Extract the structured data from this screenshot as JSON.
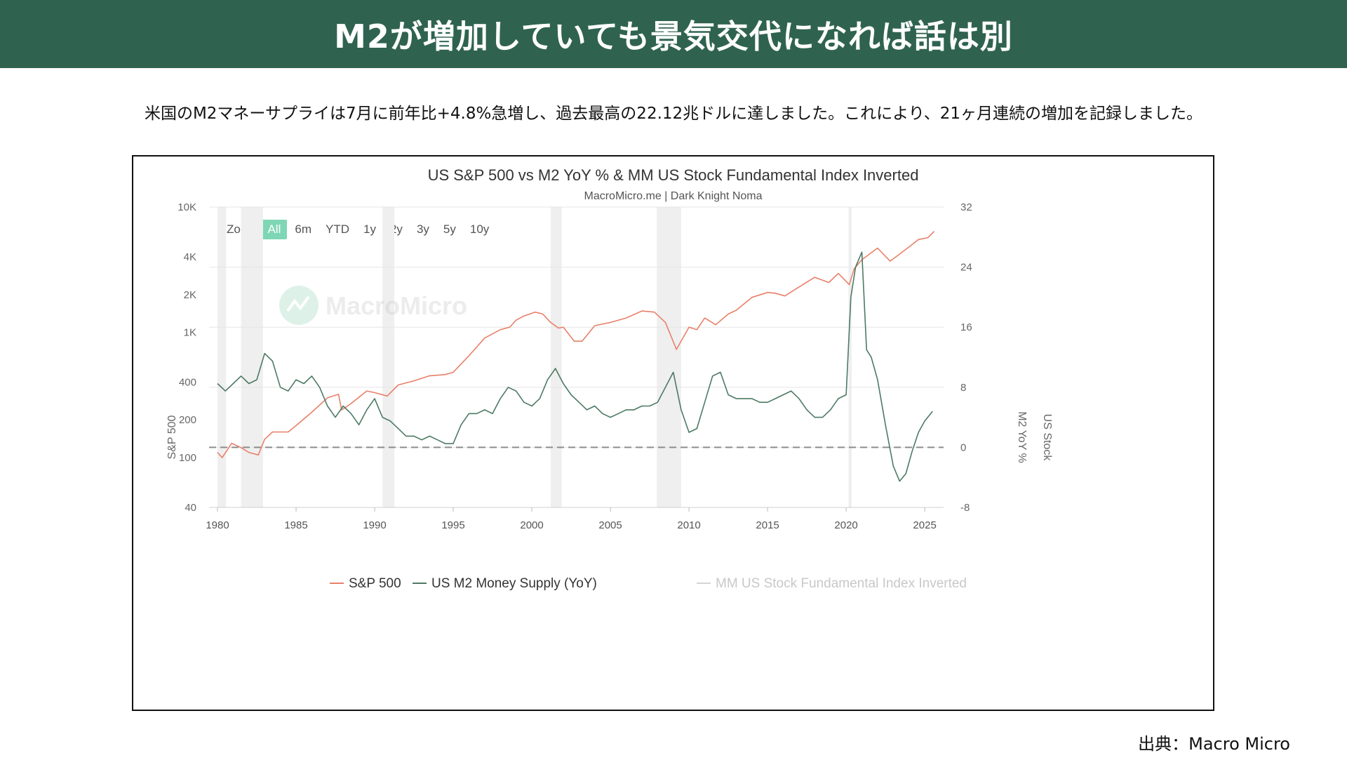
{
  "header": {
    "title": "M2が増加していても景気交代になれば話は別"
  },
  "lead": "米国のM2マネーサプライは7月に前年比+4.8%急増し、過去最高の22.12兆ドルに達しました。これにより、21ヶ月連続の増加を記録しました。",
  "source": "出典：Macro Micro",
  "chart": {
    "title": "US S&P 500 vs M2 YoY % & MM US Stock Fundamental Index Inverted",
    "subtitle": "MacroMicro.me | Dark Knight Noma",
    "watermark": "MacroMicro",
    "zoom": {
      "label": "Zoom",
      "options": [
        "All",
        "6m",
        "YTD",
        "1y",
        "2y",
        "3y",
        "5y",
        "10y"
      ],
      "active": "All"
    },
    "left_axis_label": "S&P 500",
    "right_axis_label_inner": "M2 YoY %",
    "right_axis_label_outer": "US Stock",
    "legend": [
      {
        "name": "S&P 500",
        "color": "#e8806a",
        "muted": false
      },
      {
        "name": "US M2 Money Supply (YoY)",
        "color": "#4d7a64",
        "muted": false
      },
      {
        "name": "MM US Stock Fundamental Index Inverted",
        "color": "#d5d5d5",
        "muted": true
      }
    ]
  },
  "chart_data": {
    "type": "line",
    "title": "US S&P 500 vs M2 YoY % & MM US Stock Fundamental Index Inverted",
    "x_ticks": [
      "1980",
      "1985",
      "1990",
      "1995",
      "2000",
      "2005",
      "2010",
      "2015",
      "2020",
      "2025"
    ],
    "xlim": [
      1980,
      2026.2
    ],
    "left_axis": {
      "label": "S&P 500",
      "scale": "log",
      "ticks": [
        "10K",
        "4K",
        "2K",
        "1K",
        "400",
        "200",
        "100",
        "40"
      ],
      "tick_values": [
        10000,
        4000,
        2000,
        1000,
        400,
        200,
        100,
        40
      ],
      "ylim": [
        40,
        10000
      ]
    },
    "right_axis": {
      "label": "M2 YoY %",
      "ticks": [
        "32",
        "24",
        "16",
        "8",
        "0",
        "-8"
      ],
      "tick_values": [
        32,
        24,
        16,
        8,
        0,
        -8
      ],
      "ylim": [
        -8,
        32
      ]
    },
    "zero_line": 0,
    "recessions": [
      [
        1980.0,
        1980.55
      ],
      [
        1981.5,
        1982.9
      ],
      [
        1990.5,
        1991.25
      ],
      [
        2001.2,
        2001.9
      ],
      [
        2007.95,
        2009.5
      ],
      [
        2020.15,
        2020.35
      ]
    ],
    "series": [
      {
        "name": "S&P 500",
        "axis": "left",
        "color": "#e8806a",
        "x": [
          1980,
          1980.3,
          1980.9,
          1981.5,
          1982.0,
          1982.6,
          1983.0,
          1983.5,
          1984.5,
          1985.0,
          1986.0,
          1987.0,
          1987.7,
          1987.9,
          1988.5,
          1989.5,
          1990.0,
          1990.8,
          1991.5,
          1992.5,
          1993.5,
          1994.5,
          1995.0,
          1996.0,
          1997.0,
          1998.0,
          1998.6,
          1999.0,
          1999.5,
          2000.2,
          2000.7,
          2001.2,
          2001.7,
          2002.0,
          2002.7,
          2003.2,
          2004.0,
          2005.0,
          2006.0,
          2007.0,
          2007.8,
          2008.5,
          2009.2,
          2010.0,
          2010.5,
          2011.0,
          2011.7,
          2012.5,
          2013.0,
          2014.0,
          2015.0,
          2015.5,
          2016.1,
          2017.0,
          2018.0,
          2018.9,
          2019.5,
          2020.2,
          2020.5,
          2021.0,
          2022.0,
          2022.8,
          2023.5,
          2024.0,
          2024.6,
          2025.2,
          2025.6
        ],
        "y": [
          110,
          100,
          130,
          120,
          110,
          105,
          140,
          160,
          160,
          180,
          230,
          300,
          320,
          240,
          270,
          340,
          330,
          310,
          380,
          410,
          450,
          460,
          480,
          650,
          900,
          1050,
          1100,
          1250,
          1350,
          1450,
          1400,
          1200,
          1080,
          1100,
          850,
          850,
          1130,
          1200,
          1300,
          1480,
          1450,
          1200,
          730,
          1100,
          1050,
          1300,
          1150,
          1400,
          1500,
          1900,
          2080,
          2050,
          1950,
          2300,
          2750,
          2500,
          2950,
          2400,
          3200,
          3800,
          4700,
          3700,
          4300,
          4800,
          5500,
          5700,
          6400
        ]
      },
      {
        "name": "US M2 Money Supply (YoY)",
        "axis": "right",
        "color": "#4d7a64",
        "x": [
          1980,
          1980.5,
          1981.0,
          1981.5,
          1982.0,
          1982.5,
          1983.0,
          1983.5,
          1984.0,
          1984.5,
          1985.0,
          1985.5,
          1986.0,
          1986.5,
          1987.0,
          1987.5,
          1988.0,
          1988.5,
          1989.0,
          1989.5,
          1990.0,
          1990.5,
          1991.0,
          1991.5,
          1992.0,
          1992.5,
          1993.0,
          1993.5,
          1994.0,
          1994.5,
          1995.0,
          1995.5,
          1996.0,
          1996.5,
          1997.0,
          1997.5,
          1998.0,
          1998.5,
          1999.0,
          1999.5,
          2000.0,
          2000.5,
          2001.0,
          2001.5,
          2002.0,
          2002.5,
          2003.0,
          2003.5,
          2004.0,
          2004.5,
          2005.0,
          2005.5,
          2006.0,
          2006.5,
          2007.0,
          2007.5,
          2008.0,
          2008.5,
          2009.0,
          2009.5,
          2010.0,
          2010.5,
          2011.0,
          2011.5,
          2012.0,
          2012.5,
          2013.0,
          2013.5,
          2014.0,
          2014.5,
          2015.0,
          2015.5,
          2016.0,
          2016.5,
          2017.0,
          2017.5,
          2018.0,
          2018.5,
          2019.0,
          2019.5,
          2020.0,
          2020.3,
          2020.6,
          2021.0,
          2021.3,
          2021.6,
          2022.0,
          2022.5,
          2023.0,
          2023.4,
          2023.8,
          2024.2,
          2024.6,
          2025.0,
          2025.5
        ],
        "y": [
          8.5,
          7.5,
          8.5,
          9.5,
          8.5,
          9.0,
          12.5,
          11.5,
          8.0,
          7.5,
          9.0,
          8.5,
          9.5,
          8.0,
          5.5,
          4.0,
          5.5,
          4.5,
          3.0,
          5.0,
          6.5,
          4.0,
          3.5,
          2.5,
          1.5,
          1.5,
          1.0,
          1.5,
          1.0,
          0.5,
          0.5,
          3.0,
          4.5,
          4.5,
          5.0,
          4.5,
          6.5,
          8.0,
          7.5,
          6.0,
          5.5,
          6.5,
          9.0,
          10.5,
          8.5,
          7.0,
          6.0,
          5.0,
          5.5,
          4.5,
          4.0,
          4.5,
          5.0,
          5.0,
          5.5,
          5.5,
          6.0,
          8.0,
          10.0,
          5.0,
          2.0,
          2.5,
          6.0,
          9.5,
          10.0,
          7.0,
          6.5,
          6.5,
          6.5,
          6.0,
          6.0,
          6.5,
          7.0,
          7.5,
          6.5,
          5.0,
          4.0,
          4.0,
          5.0,
          6.5,
          7.0,
          20.0,
          24.0,
          26.0,
          13.0,
          12.0,
          9.0,
          3.0,
          -2.5,
          -4.5,
          -3.5,
          -0.5,
          2.0,
          3.5,
          4.8
        ]
      },
      {
        "name": "MM US Stock Fundamental Index Inverted",
        "axis": "right",
        "color": "#d5d5d5",
        "x": [],
        "y": []
      }
    ]
  }
}
